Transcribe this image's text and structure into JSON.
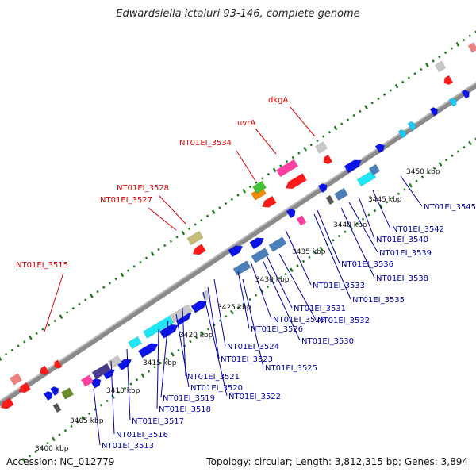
{
  "title": "Edwardsiella ictaluri 93-146, complete genome",
  "footer": {
    "accession": "Accession: NC_012779",
    "summary": "Topology: circular; Length: 3,812,315 bp; Genes: 3,894"
  },
  "colors": {
    "backbone": "#8a8a8a",
    "ruler_ticks": "#1e7a1e",
    "red_label": "#e00000",
    "blue_label": "#0000aa",
    "feature_red": "#ff1a1a",
    "feature_pink": "#ff40a0",
    "feature_blue": "#0a14e6",
    "feature_cyan": "#1ee6f5",
    "feature_steel": "#4a7fb8",
    "feature_gray": "#c8c8c8",
    "feature_olive": "#c4bc78",
    "feature_green": "#42c235",
    "feature_orange": "#f08a00",
    "feature_purple": "#4a3a8a"
  },
  "ruler": {
    "units": "kbp",
    "ticks": [
      {
        "value": 3400,
        "label": "3400 kbp"
      },
      {
        "value": 3405,
        "label": "3405 kbp"
      },
      {
        "value": 3410,
        "label": "3410 kbp"
      },
      {
        "value": 3415,
        "label": "3415 kbp"
      },
      {
        "value": 3420,
        "label": "3420 kbp"
      },
      {
        "value": 3425,
        "label": "3425 kbp"
      },
      {
        "value": 3430,
        "label": "3430 kbp"
      },
      {
        "value": 3435,
        "label": "3435 kbp"
      },
      {
        "value": 3440,
        "label": "3440 kbp"
      },
      {
        "value": 3445,
        "label": "3445 kbp"
      },
      {
        "value": 3450,
        "label": "3450 kbp"
      }
    ]
  },
  "top_labels": [
    "dkgA",
    "uvrA",
    "NT01EI_3534",
    "NT01EI_3528",
    "NT01EI_3527",
    "NT01EI_3515"
  ],
  "bottom_labels": [
    "NT01EI_3545",
    "NT01EI_3542",
    "NT01EI_3540",
    "NT01EI_3539",
    "NT01EI_3538",
    "NT01EI_3536",
    "NT01EI_3535",
    "NT01EI_3533",
    "NT01EI_3532",
    "NT01EI_3531",
    "NT01EI_3530",
    "NT01EI_3529",
    "NT01EI_3526",
    "NT01EI_3525",
    "NT01EI_3524",
    "NT01EI_3523",
    "NT01EI_3522",
    "NT01EI_3521",
    "NT01EI_3520",
    "NT01EI_3519",
    "NT01EI_3518",
    "NT01EI_3517",
    "NT01EI_3516",
    "NT01EI_3513"
  ]
}
